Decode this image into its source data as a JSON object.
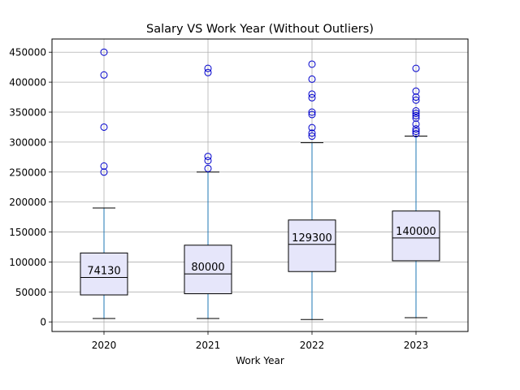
{
  "chart_data": {
    "type": "box",
    "title": "Salary VS Work Year (Without Outliers)",
    "xlabel": "Work Year",
    "ylabel": "",
    "categories": [
      "2020",
      "2021",
      "2022",
      "2023"
    ],
    "ylim": [
      -16000,
      472000
    ],
    "yticks": [
      0,
      50000,
      100000,
      150000,
      200000,
      250000,
      300000,
      350000,
      400000,
      450000
    ],
    "grid": true,
    "colors": {
      "box_fill": "#e6e6fa",
      "box_edge": "#000000",
      "whisker": "#1f77b4",
      "median": "#000000",
      "outlier": "#0000cd",
      "grid": "#b0b0b0"
    },
    "boxes": [
      {
        "category": "2020",
        "whislo": 5700,
        "q1": 45000,
        "median": 74130,
        "q3": 115000,
        "whishi": 190000,
        "median_label": "74130",
        "fliers": [
          450000,
          412000,
          325000,
          260000,
          250000
        ]
      },
      {
        "category": "2021",
        "whislo": 5700,
        "q1": 47000,
        "median": 80000,
        "q3": 128000,
        "whishi": 250000,
        "median_label": "80000",
        "fliers": [
          423000,
          416000,
          276000,
          269000,
          256000
        ]
      },
      {
        "category": "2022",
        "whislo": 4000,
        "q1": 84000,
        "median": 129300,
        "q3": 170000,
        "whishi": 299000,
        "median_label": "129300",
        "fliers": [
          430000,
          405000,
          380000,
          374000,
          350000,
          346000,
          324000,
          315000,
          310000
        ]
      },
      {
        "category": "2023",
        "whislo": 7000,
        "q1": 102000,
        "median": 140000,
        "q3": 185000,
        "whishi": 310000,
        "median_label": "140000",
        "fliers": [
          423000,
          385000,
          375000,
          370000,
          352000,
          348000,
          344000,
          340000,
          330000,
          322000,
          318000,
          314000
        ]
      }
    ]
  }
}
